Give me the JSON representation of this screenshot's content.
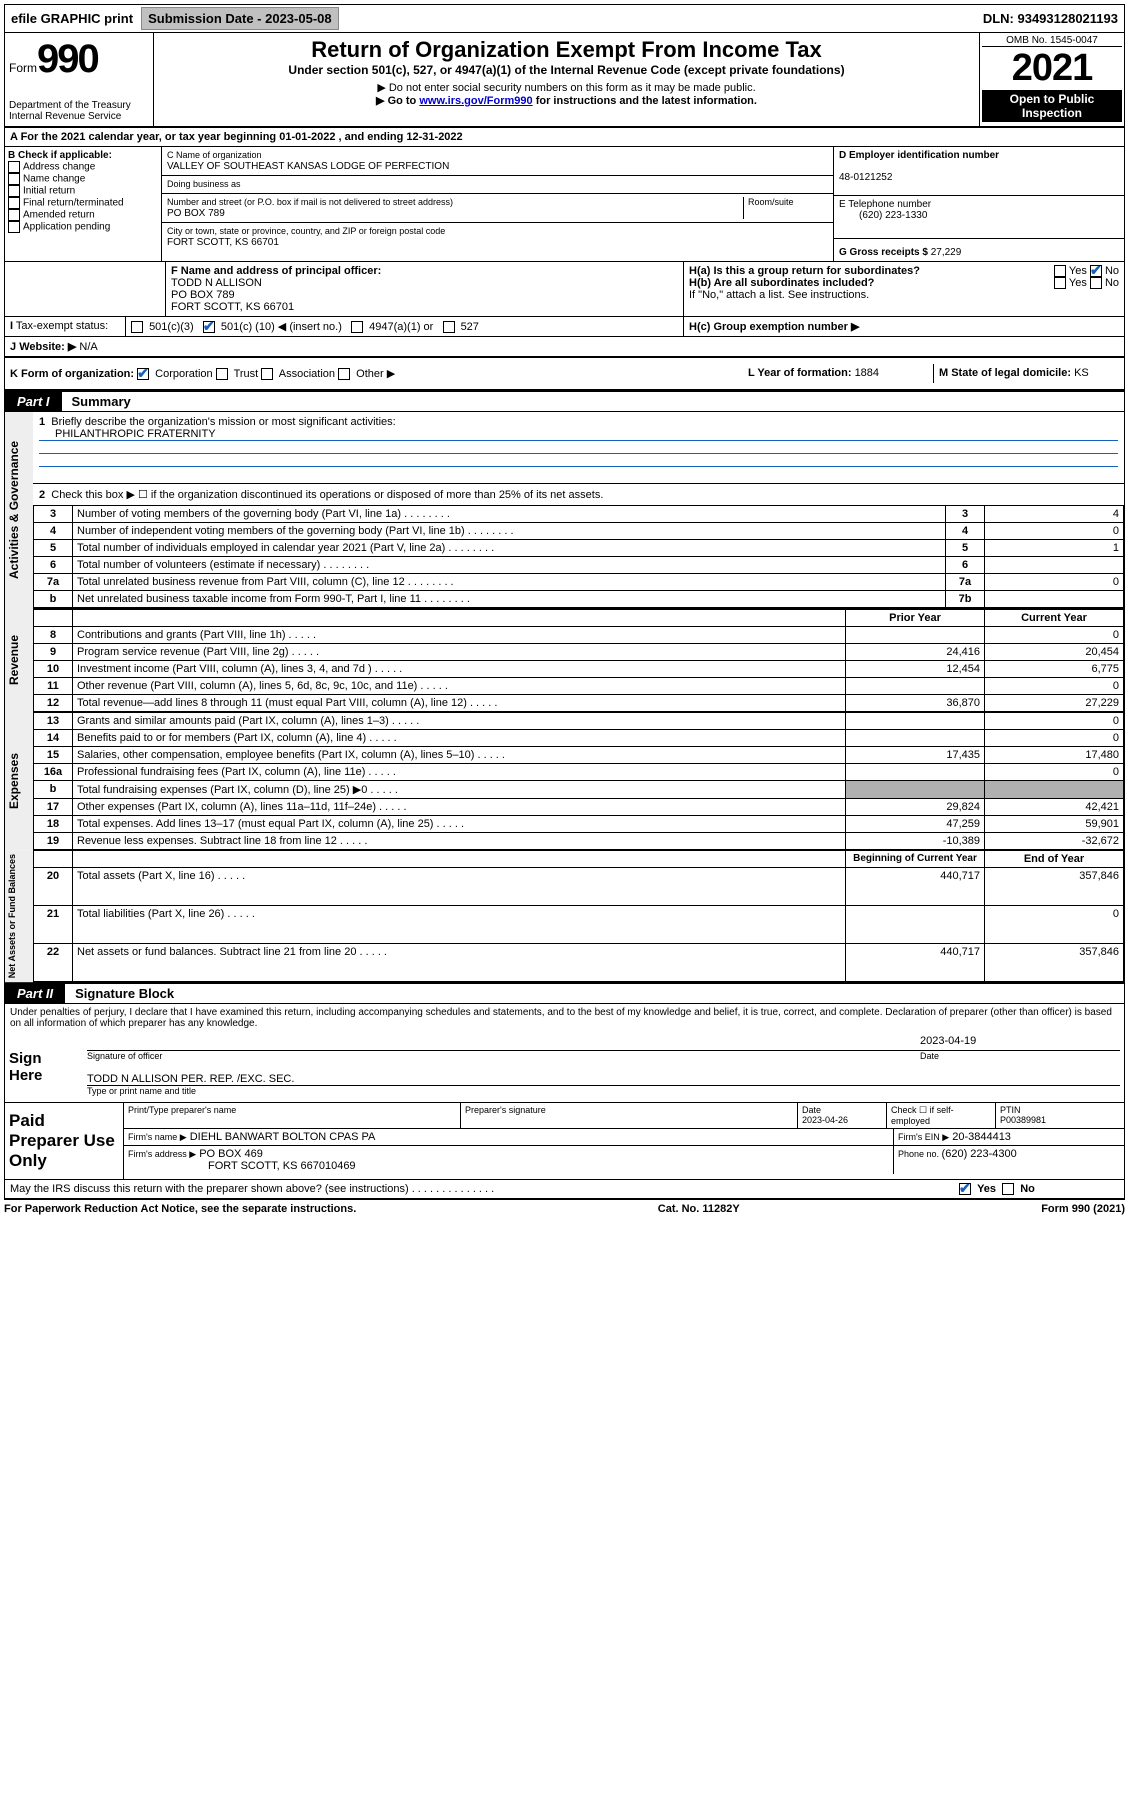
{
  "topbar": {
    "efile": "efile GRAPHIC print",
    "sub_label": "Submission Date - ",
    "sub_date": "2023-05-08",
    "dln_label": "DLN: ",
    "dln": "93493128021193"
  },
  "header": {
    "form_word": "Form",
    "form_num": "990",
    "dept": "Department of the Treasury",
    "irs": "Internal Revenue Service",
    "title": "Return of Organization Exempt From Income Tax",
    "subtitle": "Under section 501(c), 527, or 4947(a)(1) of the Internal Revenue Code (except private foundations)",
    "note1": "▶ Do not enter social security numbers on this form as it may be made public.",
    "note2_pre": "▶ Go to ",
    "note2_link": "www.irs.gov/Form990",
    "note2_post": " for instructions and the latest information.",
    "omb": "OMB No. 1545-0047",
    "year": "2021",
    "open": "Open to Public Inspection"
  },
  "rowA": {
    "text_pre": "A For the 2021 calendar year, or tax year beginning ",
    "begin": "01-01-2022",
    "mid": " , and ending ",
    "end": "12-31-2022"
  },
  "sectionB": {
    "label": "B Check if applicable:",
    "opts": [
      "Address change",
      "Name change",
      "Initial return",
      "Final return/terminated",
      "Amended return",
      "Application pending"
    ]
  },
  "sectionC": {
    "name_label": "C Name of organization",
    "name": "VALLEY OF SOUTHEAST KANSAS LODGE OF PERFECTION",
    "dba_label": "Doing business as",
    "addr_label": "Number and street (or P.O. box if mail is not delivered to street address)",
    "room_label": "Room/suite",
    "addr": "PO BOX 789",
    "city_label": "City or town, state or province, country, and ZIP or foreign postal code",
    "city": "FORT SCOTT, KS  66701"
  },
  "sectionD": {
    "label": "D Employer identification number",
    "ein": "48-0121252",
    "tel_label": "E Telephone number",
    "tel": "(620) 223-1330",
    "gross_label": "G Gross receipts $ ",
    "gross": "27,229"
  },
  "sectionF": {
    "label": "F Name and address of principal officer:",
    "name": "TODD N ALLISON",
    "addr1": "PO BOX 789",
    "addr2": "FORT SCOTT, KS  66701"
  },
  "sectionH": {
    "ha": "H(a)  Is this a group return for subordinates?",
    "hb": "H(b)  Are all subordinates included?",
    "hnote": "If \"No,\" attach a list. See instructions.",
    "hc": "H(c)  Group exemption number ▶",
    "yes": "Yes",
    "no": "No"
  },
  "rowI": {
    "label": "Tax-exempt status:",
    "o1": "501(c)(3)",
    "o2a": "501(c) (",
    "o2num": "10",
    "o2b": ") ◀ (insert no.)",
    "o3": "4947(a)(1) or",
    "o4": "527"
  },
  "rowJ": {
    "label": "Website: ▶",
    "val": "N/A"
  },
  "rowK": {
    "label": "K Form of organization:",
    "o1": "Corporation",
    "o2": "Trust",
    "o3": "Association",
    "o4": "Other ▶",
    "l_label": "L Year of formation: ",
    "l_val": "1884",
    "m_label": "M State of legal domicile: ",
    "m_val": "KS"
  },
  "partI": {
    "tab": "Part I",
    "title": "Summary"
  },
  "summary": {
    "q1": "Briefly describe the organization's mission or most significant activities:",
    "q1_ans": "PHILANTHROPIC FRATERNITY",
    "q2": "Check this box ▶ ☐  if the organization discontinued its operations or disposed of more than 25% of its net assets.",
    "lines_gov": [
      {
        "n": "3",
        "label": "Number of voting members of the governing body (Part VI, line 1a)",
        "box": "3",
        "val": "4"
      },
      {
        "n": "4",
        "label": "Number of independent voting members of the governing body (Part VI, line 1b)",
        "box": "4",
        "val": "0"
      },
      {
        "n": "5",
        "label": "Total number of individuals employed in calendar year 2021 (Part V, line 2a)",
        "box": "5",
        "val": "1"
      },
      {
        "n": "6",
        "label": "Total number of volunteers (estimate if necessary)",
        "box": "6",
        "val": ""
      },
      {
        "n": "7a",
        "label": "Total unrelated business revenue from Part VIII, column (C), line 12",
        "box": "7a",
        "val": "0"
      },
      {
        "n": "b",
        "label": "Net unrelated business taxable income from Form 990-T, Part I, line 11",
        "box": "7b",
        "val": ""
      }
    ],
    "col_prior": "Prior Year",
    "col_curr": "Current Year",
    "revenue": [
      {
        "n": "8",
        "label": "Contributions and grants (Part VIII, line 1h)",
        "p": "",
        "c": "0"
      },
      {
        "n": "9",
        "label": "Program service revenue (Part VIII, line 2g)",
        "p": "24,416",
        "c": "20,454"
      },
      {
        "n": "10",
        "label": "Investment income (Part VIII, column (A), lines 3, 4, and 7d )",
        "p": "12,454",
        "c": "6,775"
      },
      {
        "n": "11",
        "label": "Other revenue (Part VIII, column (A), lines 5, 6d, 8c, 9c, 10c, and 11e)",
        "p": "",
        "c": "0"
      },
      {
        "n": "12",
        "label": "Total revenue—add lines 8 through 11 (must equal Part VIII, column (A), line 12)",
        "p": "36,870",
        "c": "27,229"
      }
    ],
    "expenses": [
      {
        "n": "13",
        "label": "Grants and similar amounts paid (Part IX, column (A), lines 1–3)",
        "p": "",
        "c": "0"
      },
      {
        "n": "14",
        "label": "Benefits paid to or for members (Part IX, column (A), line 4)",
        "p": "",
        "c": "0"
      },
      {
        "n": "15",
        "label": "Salaries, other compensation, employee benefits (Part IX, column (A), lines 5–10)",
        "p": "17,435",
        "c": "17,480"
      },
      {
        "n": "16a",
        "label": "Professional fundraising fees (Part IX, column (A), line 11e)",
        "p": "",
        "c": "0"
      },
      {
        "n": "b",
        "label": "Total fundraising expenses (Part IX, column (D), line 25) ▶0",
        "p": "SHADE",
        "c": "SHADE"
      },
      {
        "n": "17",
        "label": "Other expenses (Part IX, column (A), lines 11a–11d, 11f–24e)",
        "p": "29,824",
        "c": "42,421"
      },
      {
        "n": "18",
        "label": "Total expenses. Add lines 13–17 (must equal Part IX, column (A), line 25)",
        "p": "47,259",
        "c": "59,901"
      },
      {
        "n": "19",
        "label": "Revenue less expenses. Subtract line 18 from line 12",
        "p": "-10,389",
        "c": "-32,672"
      }
    ],
    "col_begin": "Beginning of Current Year",
    "col_end": "End of Year",
    "netassets": [
      {
        "n": "20",
        "label": "Total assets (Part X, line 16)",
        "p": "440,717",
        "c": "357,846"
      },
      {
        "n": "21",
        "label": "Total liabilities (Part X, line 26)",
        "p": "",
        "c": "0"
      },
      {
        "n": "22",
        "label": "Net assets or fund balances. Subtract line 21 from line 20",
        "p": "440,717",
        "c": "357,846"
      }
    ],
    "vlabels": {
      "gov": "Activities & Governance",
      "rev": "Revenue",
      "exp": "Expenses",
      "net": "Net Assets or Fund Balances"
    }
  },
  "partII": {
    "tab": "Part II",
    "title": "Signature Block"
  },
  "sig": {
    "penalty": "Under penalties of perjury, I declare that I have examined this return, including accompanying schedules and statements, and to the best of my knowledge and belief, it is true, correct, and complete. Declaration of preparer (other than officer) is based on all information of which preparer has any knowledge.",
    "sign_here": "Sign Here",
    "sig_officer": "Signature of officer",
    "sig_date": "2023-04-19",
    "date_label": "Date",
    "officer_name": "TODD N ALLISON  PER. REP. /EXC. SEC.",
    "officer_type": "Type or print name and title",
    "paid": "Paid Preparer Use Only",
    "prep_name_label": "Print/Type preparer's name",
    "prep_sig_label": "Preparer's signature",
    "prep_date_label": "Date",
    "prep_date": "2023-04-26",
    "self_emp": "Check ☐ if self-employed",
    "ptin_label": "PTIN",
    "ptin": "P00389981",
    "firm_name_label": "Firm's name   ▶",
    "firm_name": "DIEHL BANWART BOLTON CPAS PA",
    "firm_ein_label": "Firm's EIN ▶",
    "firm_ein": "20-3844413",
    "firm_addr_label": "Firm's address ▶",
    "firm_addr1": "PO BOX 469",
    "firm_addr2": "FORT SCOTT, KS  667010469",
    "firm_phone_label": "Phone no. ",
    "firm_phone": "(620) 223-4300",
    "may_irs": "May the IRS discuss this return with the preparer shown above? (see instructions)"
  },
  "footer": {
    "left": "For Paperwork Reduction Act Notice, see the separate instructions.",
    "mid": "Cat. No. 11282Y",
    "right": "Form 990 (2021)"
  }
}
